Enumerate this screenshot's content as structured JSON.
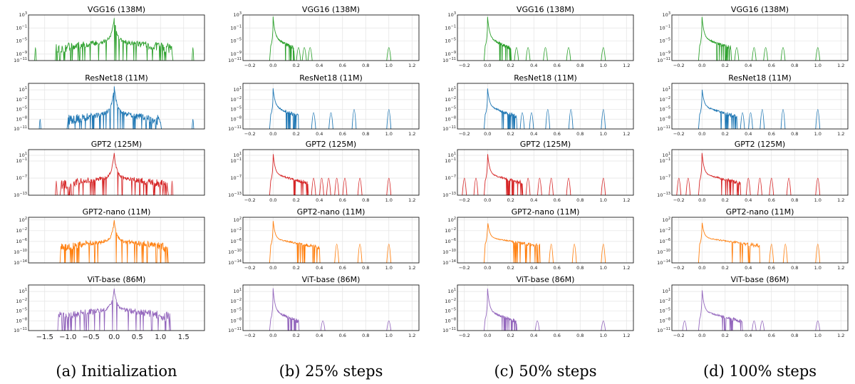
{
  "chart_data": {
    "type": "line",
    "yscale": "log",
    "grid": true,
    "columns": [
      {
        "caption": "(a) Initialization",
        "xlim": [
          -1.85,
          1.95
        ],
        "xticks": [
          -1.5,
          -1.0,
          -0.5,
          0.0,
          0.5,
          1.0,
          1.5
        ],
        "xtick_labels": [
          "−1.5",
          "−1.0",
          "−0.5",
          "0.0",
          "0.5",
          "1.0",
          "1.5"
        ],
        "last_row_only": true,
        "symmetric": true
      },
      {
        "caption": "(b) 25% steps",
        "xlim": [
          -0.26,
          1.26
        ],
        "xticks": [
          -0.2,
          0.0,
          0.2,
          0.4,
          0.6,
          0.8,
          1.0,
          1.2
        ],
        "xtick_labels": [
          "−0.2",
          "0.0",
          "0.2",
          "0.4",
          "0.6",
          "0.8",
          "1.0",
          "1.2"
        ],
        "last_row_only": false,
        "symmetric": false
      },
      {
        "caption": "(c) 50% steps",
        "xlim": [
          -0.26,
          1.26
        ],
        "xticks": [
          -0.2,
          0.0,
          0.2,
          0.4,
          0.6,
          0.8,
          1.0,
          1.2
        ],
        "xtick_labels": [
          "−0.2",
          "0.0",
          "0.2",
          "0.4",
          "0.6",
          "0.8",
          "1.0",
          "1.2"
        ],
        "last_row_only": false,
        "symmetric": false
      },
      {
        "caption": "(d) 100% steps",
        "xlim": [
          -0.26,
          1.26
        ],
        "xticks": [
          -0.2,
          0.0,
          0.2,
          0.4,
          0.6,
          0.8,
          1.0,
          1.2
        ],
        "xtick_labels": [
          "−0.2",
          "0.0",
          "0.2",
          "0.4",
          "0.6",
          "0.8",
          "1.0",
          "1.2"
        ],
        "last_row_only": false,
        "symmetric": false
      }
    ],
    "models": [
      {
        "name": "VGG16 (138M)",
        "color": "#2ca02c",
        "yticks": [
          -11,
          -9,
          -5,
          -1,
          3
        ],
        "ylim": [
          -11,
          3
        ]
      },
      {
        "name": "ResNet18 (11M)",
        "color": "#1f77b4",
        "yticks": [
          -11,
          -8,
          -5,
          -2,
          1
        ],
        "ylim": [
          -11,
          3
        ]
      },
      {
        "name": "GPT2 (125M)",
        "color": "#d62728",
        "yticks": [
          -13,
          -7,
          -1,
          1
        ],
        "ylim": [
          -13,
          3
        ]
      },
      {
        "name": "GPT2-nano (11M)",
        "color": "#ff7f0e",
        "yticks": [
          -14,
          -10,
          -6,
          -2,
          2
        ],
        "ylim": [
          -14,
          3
        ]
      },
      {
        "name": "ViT-base (86M)",
        "color": "#9467bd",
        "yticks": [
          -11,
          -8,
          -5,
          -2,
          1
        ],
        "ylim": [
          -11,
          3
        ]
      }
    ],
    "series": [
      {
        "col": 0,
        "row": 0,
        "peak": 2.5,
        "base": -4.5,
        "env_power": 1.0,
        "spread": 1.25,
        "edge": [
          -1.25,
          1.25
        ],
        "spikes": [
          [
            -1.7,
            -7
          ],
          [
            1.7,
            -7
          ]
        ]
      },
      {
        "col": 0,
        "row": 1,
        "peak": 2.5,
        "base": -5.5,
        "env_power": 1.0,
        "spread": 1.0,
        "edge": [
          -1.0,
          1.0
        ],
        "spikes": [
          [
            -1.6,
            -8
          ],
          [
            1.7,
            -8
          ]
        ]
      },
      {
        "col": 0,
        "row": 2,
        "peak": 2.0,
        "base": -6.5,
        "env_power": 2.0,
        "spread": 1.1,
        "edge": [
          -1.15,
          1.15
        ],
        "spikes": [
          [
            -1.25,
            -8
          ],
          [
            1.25,
            -8
          ]
        ]
      },
      {
        "col": 0,
        "row": 3,
        "peak": 2.0,
        "base": -5.5,
        "env_power": 2.5,
        "spread": 1.1,
        "edge": [
          -1.15,
          1.15
        ],
        "spikes": []
      },
      {
        "col": 0,
        "row": 4,
        "peak": 2.0,
        "base": -4.0,
        "env_power": 1.5,
        "spread": 1.2,
        "edge": [
          -1.2,
          1.2
        ],
        "spikes": []
      },
      {
        "col": 1,
        "row": 0,
        "peak": 2.5,
        "base": -4.0,
        "decay_end": 0.18,
        "spikes": [
          [
            0.22,
            -7
          ],
          [
            0.27,
            -7
          ],
          [
            0.32,
            -7
          ],
          [
            1.0,
            -7
          ]
        ]
      },
      {
        "col": 1,
        "row": 1,
        "peak": 1.5,
        "base": -4.0,
        "decay_end": 0.22,
        "spikes": [
          [
            0.35,
            -6
          ],
          [
            0.5,
            -6
          ],
          [
            0.7,
            -5
          ],
          [
            1.0,
            -5
          ]
        ]
      },
      {
        "col": 1,
        "row": 2,
        "peak": 2.0,
        "base": -5.5,
        "decay_end": 0.3,
        "spikes": [
          [
            0.35,
            -7
          ],
          [
            0.42,
            -7
          ],
          [
            0.48,
            -7
          ],
          [
            0.55,
            -7
          ],
          [
            0.62,
            -7
          ],
          [
            0.75,
            -7
          ],
          [
            1.0,
            -7
          ]
        ]
      },
      {
        "col": 1,
        "row": 3,
        "peak": 2.0,
        "base": -5.0,
        "decay_end": 0.4,
        "spikes": [
          [
            0.55,
            -7
          ],
          [
            0.75,
            -7
          ],
          [
            1.0,
            -7
          ]
        ]
      },
      {
        "col": 1,
        "row": 4,
        "peak": 2.0,
        "base": -5.0,
        "decay_end": 0.22,
        "spikes": [
          [
            0.43,
            -8
          ],
          [
            1.0,
            -8
          ]
        ]
      },
      {
        "col": 2,
        "row": 0,
        "peak": 2.5,
        "base": -4.0,
        "decay_end": 0.2,
        "spikes": [
          [
            0.25,
            -7
          ],
          [
            0.35,
            -7
          ],
          [
            0.5,
            -7
          ],
          [
            0.7,
            -7
          ],
          [
            1.0,
            -7
          ]
        ]
      },
      {
        "col": 2,
        "row": 1,
        "peak": 1.5,
        "base": -4.0,
        "decay_end": 0.25,
        "spikes": [
          [
            0.3,
            -6
          ],
          [
            0.38,
            -6
          ],
          [
            0.52,
            -5
          ],
          [
            0.72,
            -5
          ],
          [
            1.0,
            -5
          ]
        ]
      },
      {
        "col": 2,
        "row": 2,
        "peak": 2.0,
        "base": -5.5,
        "decay_end": 0.3,
        "spikes": [
          [
            -0.2,
            -7
          ],
          [
            -0.1,
            -7
          ],
          [
            0.35,
            -7
          ],
          [
            0.45,
            -7
          ],
          [
            0.55,
            -7
          ],
          [
            0.7,
            -7
          ],
          [
            1.0,
            -7
          ]
        ]
      },
      {
        "col": 2,
        "row": 3,
        "peak": 2.0,
        "base": -4.5,
        "decay_end": 0.45,
        "spikes": [
          [
            0.55,
            -7
          ],
          [
            0.75,
            -7
          ],
          [
            1.0,
            -7
          ]
        ]
      },
      {
        "col": 2,
        "row": 4,
        "peak": 2.0,
        "base": -5.0,
        "decay_end": 0.25,
        "spikes": [
          [
            0.43,
            -8
          ],
          [
            1.0,
            -8
          ]
        ]
      },
      {
        "col": 3,
        "row": 0,
        "peak": 2.5,
        "base": -4.0,
        "decay_end": 0.25,
        "spikes": [
          [
            0.3,
            -7
          ],
          [
            0.45,
            -7
          ],
          [
            0.55,
            -7
          ],
          [
            0.7,
            -7
          ],
          [
            1.0,
            -7
          ]
        ]
      },
      {
        "col": 3,
        "row": 1,
        "peak": 1.5,
        "base": -4.0,
        "decay_end": 0.3,
        "spikes": [
          [
            0.35,
            -6
          ],
          [
            0.42,
            -6
          ],
          [
            0.52,
            -5
          ],
          [
            0.7,
            -5
          ],
          [
            1.0,
            -5
          ]
        ]
      },
      {
        "col": 3,
        "row": 2,
        "peak": 2.0,
        "base": -5.5,
        "decay_end": 0.33,
        "spikes": [
          [
            -0.2,
            -7
          ],
          [
            -0.12,
            -7
          ],
          [
            0.4,
            -7
          ],
          [
            0.5,
            -7
          ],
          [
            0.6,
            -7
          ],
          [
            0.75,
            -7
          ],
          [
            1.0,
            -7
          ]
        ]
      },
      {
        "col": 3,
        "row": 3,
        "peak": 1.5,
        "base": -4.5,
        "decay_end": 0.5,
        "spikes": [
          [
            0.6,
            -7
          ],
          [
            0.72,
            -7
          ],
          [
            1.0,
            -7
          ]
        ]
      },
      {
        "col": 3,
        "row": 4,
        "peak": 2.0,
        "base": -5.0,
        "decay_end": 0.35,
        "spikes": [
          [
            -0.15,
            -8
          ],
          [
            0.45,
            -8
          ],
          [
            0.52,
            -8
          ],
          [
            1.0,
            -8
          ]
        ]
      }
    ]
  }
}
